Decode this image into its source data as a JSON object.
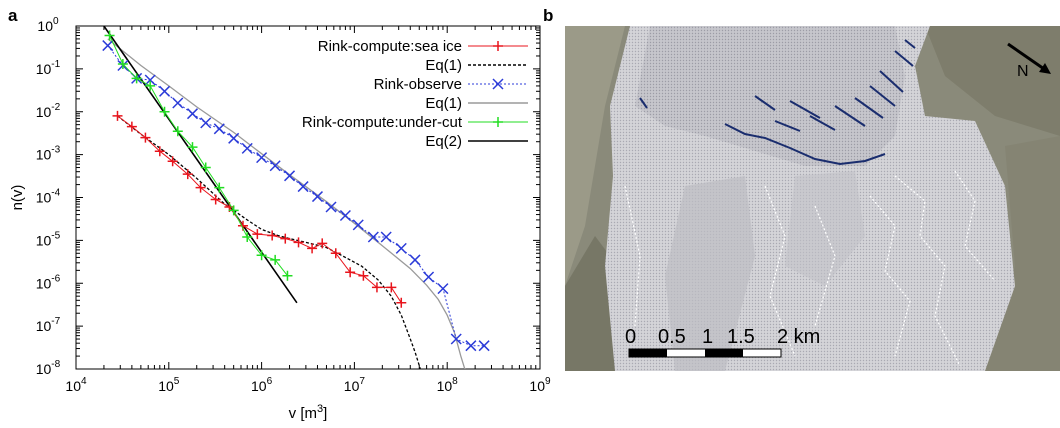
{
  "panels": {
    "a": "a",
    "b": "b"
  },
  "chart_data": {
    "type": "scatter",
    "xscale": "log",
    "yscale": "log",
    "xlim": [
      10000,
      1000000000
    ],
    "ylim": [
      1e-08,
      1
    ],
    "xlabel": "v [m³]",
    "xlabel_base": "v [m",
    "xlabel_sup": "3",
    "xlabel_tail": "]",
    "ylabel": "n(v)",
    "x_ticks": [
      {
        "exp": 4,
        "label_base": "10",
        "label_sup": "4"
      },
      {
        "exp": 5,
        "label_base": "10",
        "label_sup": "5"
      },
      {
        "exp": 6,
        "label_base": "10",
        "label_sup": "6"
      },
      {
        "exp": 7,
        "label_base": "10",
        "label_sup": "7"
      },
      {
        "exp": 8,
        "label_base": "10",
        "label_sup": "8"
      },
      {
        "exp": 9,
        "label_base": "10",
        "label_sup": "9"
      }
    ],
    "y_ticks": [
      {
        "exp": 0,
        "label_base": "10",
        "label_sup": "0"
      },
      {
        "exp": -1,
        "label_base": "10",
        "label_sup": "-1"
      },
      {
        "exp": -2,
        "label_base": "10",
        "label_sup": "-2"
      },
      {
        "exp": -3,
        "label_base": "10",
        "label_sup": "-3"
      },
      {
        "exp": -4,
        "label_base": "10",
        "label_sup": "-4"
      },
      {
        "exp": -5,
        "label_base": "10",
        "label_sup": "-5"
      },
      {
        "exp": -6,
        "label_base": "10",
        "label_sup": "-6"
      },
      {
        "exp": -7,
        "label_base": "10",
        "label_sup": "-7"
      },
      {
        "exp": -8,
        "label_base": "10",
        "label_sup": "-8"
      }
    ],
    "legend_position": "top-right",
    "grid": false,
    "series": [
      {
        "name": "Rink-compute:sea ice",
        "kind": "points",
        "marker": "plus",
        "color": "#e8141c",
        "x": [
          28000,
          40000,
          56000,
          80000,
          110000,
          160000,
          220000,
          320000,
          450000,
          630000,
          900000,
          1300000,
          1800000,
          2500000,
          3500000,
          4500000,
          6300000,
          9000000,
          12500000,
          17500000,
          25000000,
          32000000
        ],
        "y": [
          0.008,
          0.0045,
          0.0025,
          0.0012,
          0.0007,
          0.00035,
          0.00017,
          9e-05,
          6e-05,
          2.2e-05,
          1.4e-05,
          1.3e-05,
          1.1e-05,
          9e-06,
          6.5e-06,
          8.5e-06,
          5e-06,
          1.8e-06,
          1.5e-06,
          8e-07,
          8e-07,
          3.5e-07
        ]
      },
      {
        "name": "Eq(1)",
        "kind": "line",
        "dash": "3,2",
        "color": "#000000",
        "x": [
          28000,
          50000,
          100000,
          200000,
          400000,
          700000,
          1000000,
          1500000,
          2000000,
          3000000,
          5000000,
          8000000,
          12000000,
          18000000,
          25000000,
          32000000,
          40000000,
          45000000,
          50000000,
          55000000
        ],
        "y": [
          0.008,
          0.003,
          0.001,
          0.00028,
          7e-05,
          3e-05,
          1.8e-05,
          1.3e-05,
          1.1e-05,
          9e-06,
          6.8e-06,
          4e-06,
          2.5e-06,
          1.2e-06,
          5e-07,
          1.8e-07,
          5e-08,
          2.5e-08,
          1.2e-08,
          6e-09
        ]
      },
      {
        "name": "Rink-observe",
        "kind": "points",
        "marker": "x",
        "color": "#2b3bd8",
        "x": [
          22000,
          32000,
          45000,
          63000,
          90000,
          125000,
          180000,
          250000,
          350000,
          500000,
          700000,
          1000000,
          1400000,
          2000000,
          2800000,
          4000000,
          5600000,
          8000000,
          11000000,
          16000000,
          22000000,
          32000000,
          45000000,
          63000000,
          90000000,
          125000000,
          180000000,
          250000000
        ],
        "y": [
          0.35,
          0.12,
          0.06,
          0.055,
          0.03,
          0.016,
          0.009,
          0.0055,
          0.004,
          0.0024,
          0.0014,
          0.00085,
          0.00055,
          0.00032,
          0.00018,
          0.000105,
          6e-05,
          3.8e-05,
          2.3e-05,
          1.2e-05,
          1.2e-05,
          6.5e-06,
          3.5e-06,
          1.4e-06,
          7.5e-07,
          5e-08,
          3.5e-08,
          3.5e-08
        ]
      },
      {
        "name": "Eq(1)",
        "kind": "line",
        "dash": "",
        "color": "#9a9a9a",
        "x": [
          22000,
          50000,
          100000,
          200000,
          500000,
          1000000,
          2000000,
          5000000,
          10000000,
          20000000,
          40000000,
          60000000,
          80000000,
          100000000,
          120000000,
          140000000,
          160000000
        ],
        "y": [
          0.5,
          0.12,
          0.04,
          0.013,
          0.0033,
          0.00105,
          0.00034,
          8e-05,
          2.5e-05,
          7.5e-06,
          2.2e-06,
          9e-07,
          4.2e-07,
          1.8e-07,
          7e-08,
          2e-08,
          8e-09
        ]
      },
      {
        "name": "Rink-compute:under-cut",
        "kind": "points",
        "marker": "plus",
        "color": "#22dd22",
        "x": [
          23000,
          32000,
          45000,
          63000,
          90000,
          125000,
          180000,
          250000,
          350000,
          500000,
          700000,
          1000000,
          1400000,
          1900000
        ],
        "y": [
          0.6,
          0.13,
          0.06,
          0.04,
          0.01,
          0.0035,
          0.0015,
          0.0005,
          0.00017,
          5e-05,
          1.2e-05,
          4.5e-06,
          3.5e-06,
          1.5e-06
        ]
      },
      {
        "name": "Eq(2)",
        "kind": "line",
        "dash": "",
        "color": "#000000",
        "x": [
          20000,
          2400000
        ],
        "y": [
          1.0,
          3.5e-07
        ]
      }
    ]
  },
  "map": {
    "north_label": "N",
    "scale_labels": [
      "0",
      "0.5",
      "1",
      "1.5",
      "2 km"
    ]
  }
}
